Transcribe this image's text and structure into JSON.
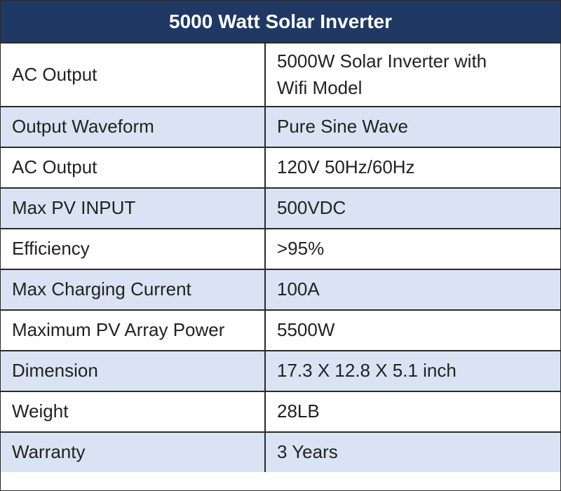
{
  "header": {
    "title": "5000 Watt Solar Inverter"
  },
  "table": {
    "rows": [
      [
        "AC Output",
        "5000W Solar Inverter with Wifi Model"
      ],
      [
        "Output Waveform",
        "Pure Sine Wave"
      ],
      [
        "AC Output",
        "120V 50Hz/60Hz"
      ],
      [
        "Max PV INPUT",
        "500VDC"
      ],
      [
        "Efficiency",
        ">95%"
      ],
      [
        "Max Charging Current",
        "100A"
      ],
      [
        "Maximum PV Array Power",
        "5500W"
      ],
      [
        "Dimension",
        "17.3 X 12.8 X 5.1 inch"
      ],
      [
        "Weight",
        "28LB"
      ],
      [
        "Warranty",
        "3 Years"
      ]
    ]
  }
}
